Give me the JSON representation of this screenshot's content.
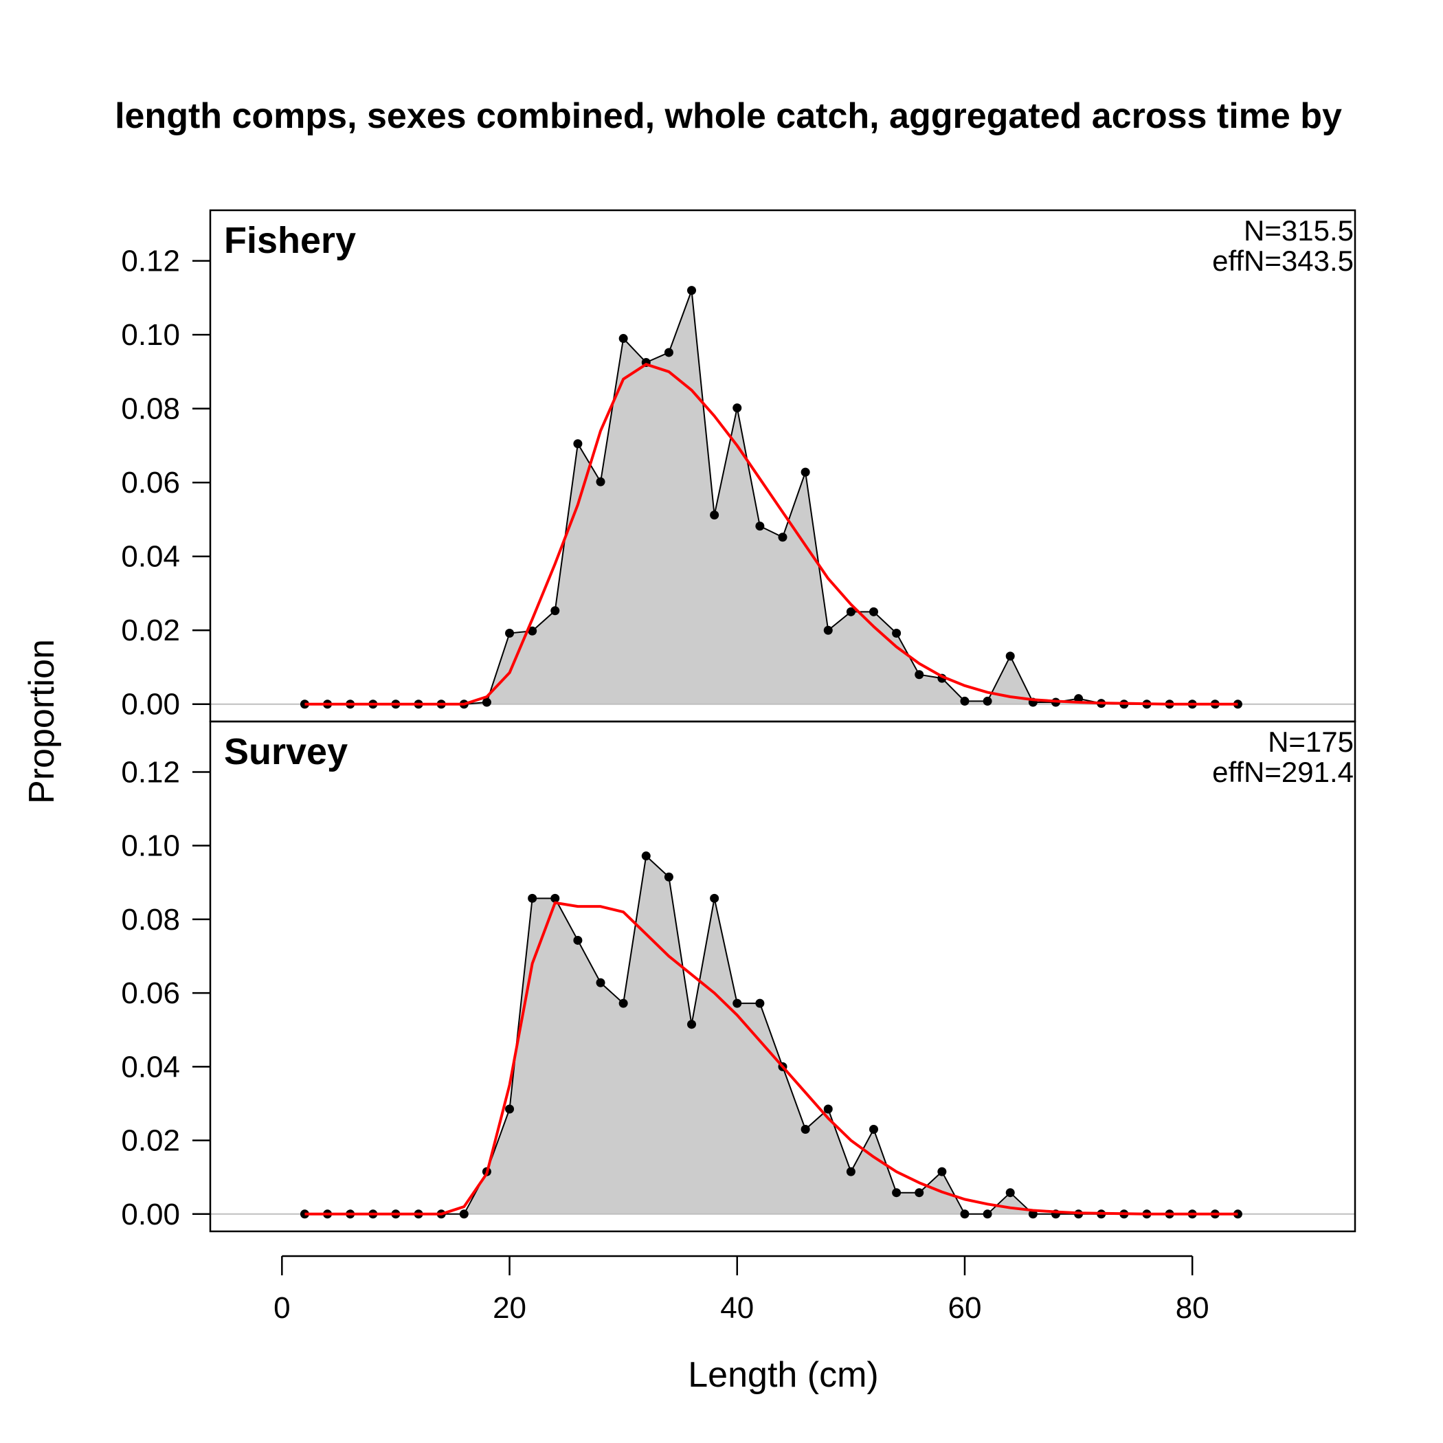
{
  "chart_data": {
    "type": "area",
    "title": "length comps, sexes combined, whole catch, aggregated across time by",
    "xlabel": "Length (cm)",
    "ylabel": "Proportion",
    "xlim": [
      -6.3,
      94.3
    ],
    "ylim": [
      -0.0047,
      0.1337
    ],
    "x_ticks": [
      0,
      20,
      40,
      60,
      80
    ],
    "y_ticks": [
      0.0,
      0.02,
      0.04,
      0.06,
      0.08,
      0.1,
      0.12
    ],
    "y_tick_labels": [
      "0.00",
      "0.02",
      "0.04",
      "0.06",
      "0.08",
      "0.10",
      "0.12"
    ],
    "x_tick_labels": [
      "0",
      "20",
      "40",
      "60",
      "80"
    ],
    "grid": false,
    "colors": {
      "observed_fill": "#cccccc",
      "observed_line": "#000000",
      "expected_line": "#ff0000",
      "zero_line": "#bfbfbf"
    },
    "x": [
      2,
      4,
      6,
      8,
      10,
      12,
      14,
      16,
      18,
      20,
      22,
      24,
      26,
      28,
      30,
      32,
      34,
      36,
      38,
      40,
      42,
      44,
      46,
      48,
      50,
      52,
      54,
      56,
      58,
      60,
      62,
      64,
      66,
      68,
      70,
      72,
      74,
      76,
      78,
      80,
      82,
      84
    ],
    "panels": [
      {
        "name": "Fishery",
        "n_label": "N=315.5",
        "effn_label": "effN=343.5",
        "observed": [
          0,
          0,
          0,
          0,
          0,
          0,
          0,
          0,
          0.0005,
          0.0192,
          0.0198,
          0.0253,
          0.0705,
          0.0602,
          0.099,
          0.0925,
          0.0952,
          0.112,
          0.0512,
          0.0802,
          0.0482,
          0.0452,
          0.0628,
          0.02,
          0.025,
          0.025,
          0.0192,
          0.008,
          0.007,
          0.0008,
          0.0008,
          0.013,
          0.0005,
          0.0005,
          0.0015,
          0.0002,
          0,
          0,
          0,
          0,
          0,
          0
        ],
        "expected": [
          0,
          0,
          0,
          0,
          0,
          0,
          0,
          0,
          0.002,
          0.0085,
          0.023,
          0.038,
          0.054,
          0.074,
          0.088,
          0.092,
          0.09,
          0.085,
          0.078,
          0.07,
          0.061,
          0.052,
          0.043,
          0.034,
          0.027,
          0.021,
          0.0155,
          0.011,
          0.0075,
          0.005,
          0.0032,
          0.002,
          0.0012,
          0.0008,
          0.0005,
          0.0003,
          0.0002,
          0.0001,
          0,
          0,
          0,
          0
        ]
      },
      {
        "name": "Survey",
        "n_label": "N=175",
        "effn_label": "effN=291.4",
        "observed": [
          0,
          0,
          0,
          0,
          0,
          0,
          0,
          0,
          0.0115,
          0.0285,
          0.0857,
          0.0857,
          0.0743,
          0.0628,
          0.0572,
          0.0972,
          0.0915,
          0.0515,
          0.0857,
          0.0572,
          0.0572,
          0.04,
          0.023,
          0.0285,
          0.0115,
          0.023,
          0.0058,
          0.0058,
          0.0115,
          0,
          0,
          0.0058,
          0,
          0,
          0,
          0,
          0,
          0,
          0,
          0,
          0,
          0
        ],
        "expected": [
          0,
          0,
          0,
          0,
          0,
          0,
          0,
          0.002,
          0.011,
          0.035,
          0.068,
          0.0845,
          0.0835,
          0.0835,
          0.082,
          0.076,
          0.07,
          0.065,
          0.06,
          0.054,
          0.047,
          0.04,
          0.033,
          0.026,
          0.02,
          0.0155,
          0.0115,
          0.0085,
          0.006,
          0.004,
          0.0027,
          0.0017,
          0.001,
          0.0006,
          0.0003,
          0.0002,
          0.0001,
          0,
          0,
          0,
          0,
          0
        ]
      }
    ]
  }
}
